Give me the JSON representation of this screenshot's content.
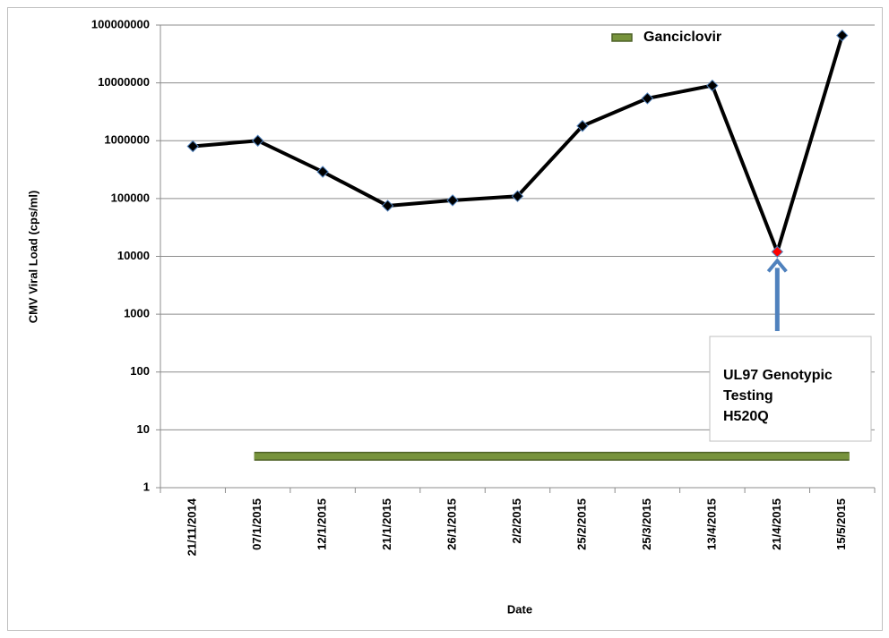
{
  "chart_data": {
    "type": "line",
    "y_label": "CMV Viral Load (cps/ml)",
    "x_label": "Date",
    "categories": [
      "21/11/2014",
      "07/1/2015",
      "12/1/2015",
      "21/1/2015",
      "26/1/2015",
      "2/2/2015",
      "25/2/2015",
      "25/3/2015",
      "13/4/2015",
      "21/4/2015",
      "15/5/2015"
    ],
    "series": [
      {
        "color": "#000000",
        "marker_color": "#000000",
        "values": [
          800000,
          1000000,
          290000,
          75000,
          93000,
          110000,
          1800000,
          5400000,
          9000000,
          12000,
          66000000
        ]
      },
      {
        "name": "Ganciclovir",
        "color": "#77933c",
        "values": [
          null,
          3.5,
          3.5,
          3.5,
          3.5,
          3.5,
          3.5,
          3.5,
          3.5,
          3.5,
          3.5
        ]
      }
    ],
    "highlight": {
      "series": 0,
      "index": 9,
      "color": "#ff0000"
    },
    "annotation": {
      "lines": [
        "UL97 Genotypic",
        "Testing",
        "H520Q"
      ],
      "series": 0,
      "index": 9
    },
    "log_scale": true,
    "ylim": [
      1,
      100000000
    ],
    "yticks": [
      1,
      10,
      100,
      1000,
      10000,
      100000,
      1000000,
      10000000,
      100000000
    ],
    "grid": true,
    "legend": "top-right"
  }
}
